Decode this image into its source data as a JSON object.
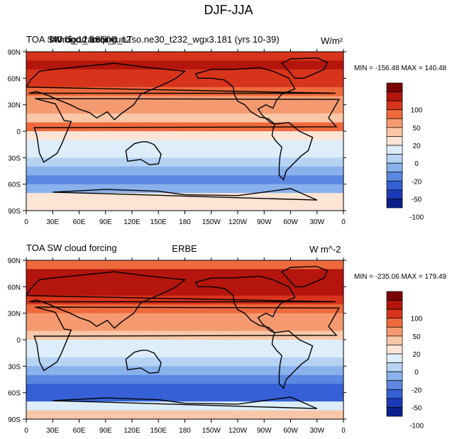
{
  "title": "DJF-JJA",
  "chart_data": [
    {
      "type": "heatmap",
      "title_left": "TOA SW cloud forcing",
      "title_center": "cam5_1_amip_run2",
      "title_center_overlap": "f40.bgc.2.1850C_LTso.ne30_t232_wgx3.181 (yrs 10-39)",
      "units": "W/m²",
      "stats": "MIN = -156.48 MAX = 140.48",
      "x_ticks": [
        "0",
        "30E",
        "60E",
        "90E",
        "120E",
        "150E",
        "180",
        "150W",
        "120W",
        "90W",
        "60W",
        "30W",
        "0"
      ],
      "y_ticks": [
        "90N",
        "60N",
        "30N",
        "0",
        "30S",
        "60S",
        "90S"
      ],
      "xlim": [
        0,
        360
      ],
      "ylim": [
        -90,
        90
      ],
      "colorbar_levels": [
        "100",
        "50",
        "20",
        "0",
        "-20",
        "-50",
        "-100"
      ],
      "zonal_mean_profile": [
        {
          "lat": 85,
          "value": 55
        },
        {
          "lat": 75,
          "value": 80
        },
        {
          "lat": 65,
          "value": 70
        },
        {
          "lat": 55,
          "value": 60
        },
        {
          "lat": 45,
          "value": 40
        },
        {
          "lat": 35,
          "value": 20
        },
        {
          "lat": 25,
          "value": 10
        },
        {
          "lat": 15,
          "value": 5
        },
        {
          "lat": 5,
          "value": 30
        },
        {
          "lat": -5,
          "value": -5
        },
        {
          "lat": -15,
          "value": -15
        },
        {
          "lat": -25,
          "value": -30
        },
        {
          "lat": -35,
          "value": -45
        },
        {
          "lat": -45,
          "value": -80
        },
        {
          "lat": -55,
          "value": -95
        },
        {
          "lat": -65,
          "value": -70
        },
        {
          "lat": -75,
          "value": -10
        },
        {
          "lat": -85,
          "value": -5
        }
      ]
    },
    {
      "type": "heatmap",
      "title_left": "TOA SW cloud forcing",
      "title_center": "ERBE",
      "units": "W m^-2",
      "stats": "MIN = -235.06 MAX = 179.49",
      "x_ticks": [
        "0",
        "30E",
        "60E",
        "90E",
        "120E",
        "150E",
        "180",
        "150W",
        "120W",
        "90W",
        "60W",
        "30W",
        "0"
      ],
      "y_ticks": [
        "90N",
        "60N",
        "30N",
        "0",
        "30S",
        "60S",
        "90S"
      ],
      "xlim": [
        0,
        360
      ],
      "ylim": [
        -90,
        90
      ],
      "colorbar_levels": [
        "100",
        "50",
        "20",
        "0",
        "-20",
        "-50",
        "-100"
      ],
      "zonal_mean_profile": [
        {
          "lat": 85,
          "value": 30
        },
        {
          "lat": 75,
          "value": 90
        },
        {
          "lat": 65,
          "value": 110
        },
        {
          "lat": 55,
          "value": 80
        },
        {
          "lat": 45,
          "value": 60
        },
        {
          "lat": 35,
          "value": 40
        },
        {
          "lat": 25,
          "value": 20
        },
        {
          "lat": 15,
          "value": 10
        },
        {
          "lat": 5,
          "value": 5
        },
        {
          "lat": -5,
          "value": -20
        },
        {
          "lat": -15,
          "value": -30
        },
        {
          "lat": -25,
          "value": -40
        },
        {
          "lat": -35,
          "value": -70
        },
        {
          "lat": -45,
          "value": -100
        },
        {
          "lat": -55,
          "value": -140
        },
        {
          "lat": -65,
          "value": -120
        },
        {
          "lat": -75,
          "value": -20
        },
        {
          "lat": -85,
          "value": 0
        }
      ]
    }
  ],
  "colorbar_colors": [
    "#7a0403",
    "#b4150c",
    "#d8341c",
    "#ee6a3c",
    "#f59a70",
    "#f9c7a8",
    "#fde4d4",
    "#ddeefa",
    "#b6d3f4",
    "#89b1ec",
    "#5c88e2",
    "#3560d6",
    "#1c3ab8",
    "#0a1f8c"
  ]
}
